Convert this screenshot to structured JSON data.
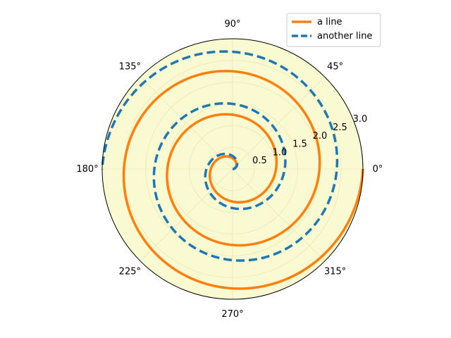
{
  "chart_data": {
    "type": "line",
    "projection": "polar",
    "title": "",
    "r_range": [
      0,
      3.0
    ],
    "r_ticks": [
      0.5,
      1.0,
      1.5,
      2.0,
      2.5,
      3.0
    ],
    "r_tick_labels": [
      "0.5",
      "1.0",
      "1.5",
      "2.0",
      "2.5",
      "3.0"
    ],
    "theta_ticks_deg": [
      0,
      45,
      90,
      135,
      180,
      225,
      270,
      315
    ],
    "theta_tick_labels": [
      "0°",
      "45°",
      "90°",
      "135°",
      "180°",
      "225°",
      "270°",
      "315°"
    ],
    "grid": true,
    "legend_position": "top-right",
    "background_color": "#fafad2",
    "grid_color": "#e8e8b4",
    "series": [
      {
        "name": "a line",
        "color": "#ff7f0e",
        "style": "solid",
        "theta_rad": [
          0,
          0.63,
          1.26,
          1.88,
          2.51,
          3.14,
          3.77,
          4.4,
          5.03,
          5.65,
          6.28,
          6.91,
          7.54,
          8.17,
          8.8,
          9.42,
          10.05,
          10.68,
          11.31,
          11.94,
          12.57,
          13.19,
          13.82,
          14.45,
          15.08,
          15.71,
          16.34,
          16.96,
          17.59,
          18.22,
          18.85
        ],
        "r": [
          0,
          0.1,
          0.2,
          0.3,
          0.4,
          0.5,
          0.6,
          0.7,
          0.8,
          0.9,
          1.0,
          1.1,
          1.2,
          1.3,
          1.4,
          1.5,
          1.6,
          1.7,
          1.8,
          1.9,
          2.0,
          2.1,
          2.2,
          2.3,
          2.4,
          2.5,
          2.6,
          2.7,
          2.8,
          2.9,
          3.0
        ]
      },
      {
        "name": "another line",
        "color": "#1f77b4",
        "style": "dashed",
        "theta_rad": [
          0,
          0.63,
          1.26,
          1.88,
          2.51,
          3.14,
          3.77,
          4.4,
          5.03,
          5.65,
          6.28,
          6.91,
          7.54,
          8.17,
          8.8,
          9.42,
          10.05,
          10.68,
          11.31,
          11.94,
          12.57,
          13.19,
          13.82,
          14.45,
          15.08,
          15.71
        ],
        "r": [
          0,
          0.12,
          0.24,
          0.36,
          0.48,
          0.6,
          0.72,
          0.84,
          0.96,
          1.08,
          1.2,
          1.32,
          1.44,
          1.56,
          1.68,
          1.8,
          1.92,
          2.04,
          2.16,
          2.28,
          2.4,
          2.52,
          2.64,
          2.76,
          2.88,
          3.0
        ]
      }
    ]
  }
}
